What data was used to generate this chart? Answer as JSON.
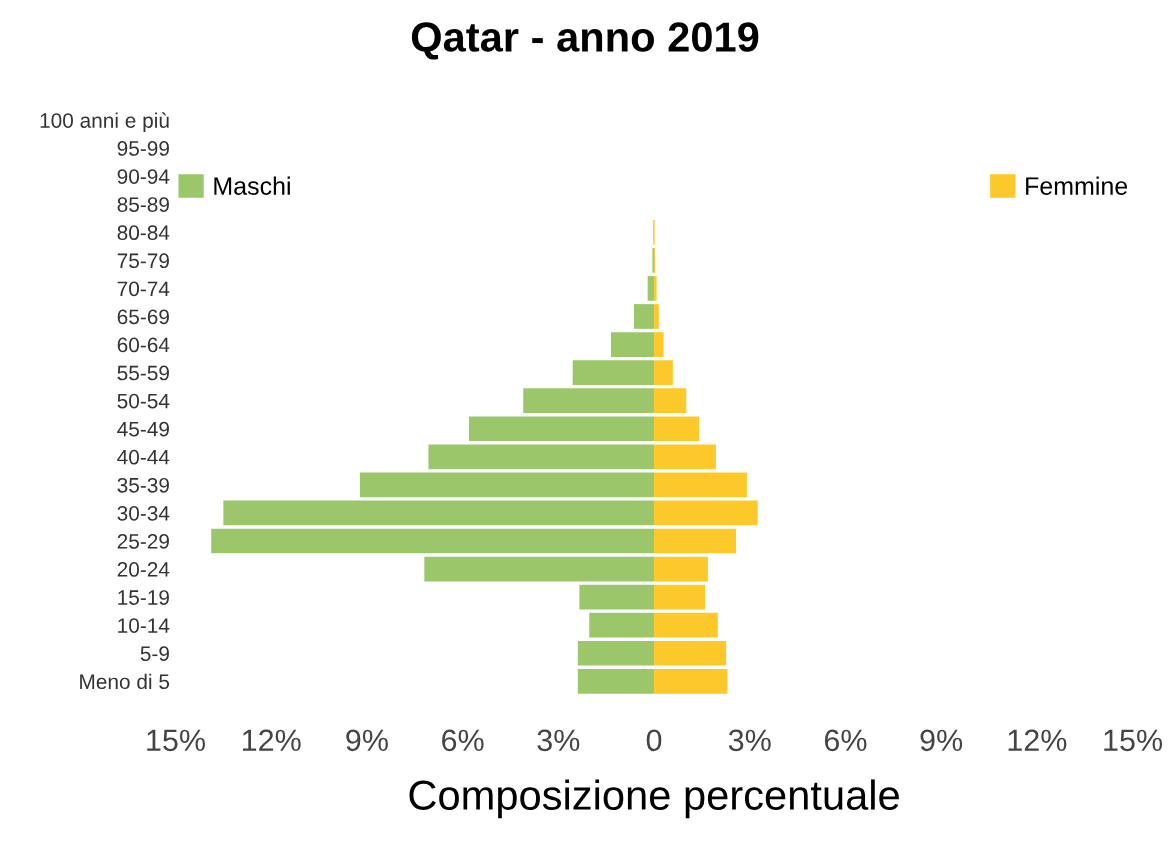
{
  "chart_data": {
    "type": "bar",
    "orientation": "horizontal",
    "title": "Qatar - anno 2019",
    "xlabel": "Composizione percentuale",
    "categories": [
      "100 anni e più",
      "95-99",
      "90-94",
      "85-89",
      "80-84",
      "75-79",
      "70-74",
      "65-69",
      "60-64",
      "55-59",
      "50-54",
      "45-49",
      "40-44",
      "35-39",
      "30-34",
      "25-29",
      "20-24",
      "15-19",
      "10-14",
      "5-9",
      "Meno di 5"
    ],
    "series": [
      {
        "name": "Maschi",
        "color": "#9bc66a",
        "values": [
          null,
          null,
          null,
          null,
          -0.02,
          -0.05,
          -0.2,
          -0.63,
          -1.35,
          -2.55,
          -4.1,
          -5.8,
          -7.07,
          -9.22,
          -13.5,
          -13.88,
          -7.2,
          -2.34,
          -2.03,
          -2.39,
          -2.39
        ]
      },
      {
        "name": "Femmine",
        "color": "#fdc82a",
        "values": [
          null,
          null,
          null,
          null,
          0.02,
          0.03,
          0.08,
          0.15,
          0.3,
          0.59,
          1.01,
          1.41,
          1.94,
          2.91,
          3.25,
          2.57,
          1.69,
          1.6,
          2.0,
          2.26,
          2.3
        ]
      }
    ],
    "xlim": [
      -15,
      15
    ],
    "xticks": [
      {
        "value": -15,
        "label": "15%"
      },
      {
        "value": -12,
        "label": "12%"
      },
      {
        "value": -9,
        "label": "9%"
      },
      {
        "value": -6,
        "label": "6%"
      },
      {
        "value": -3,
        "label": "3%"
      },
      0,
      {
        "value": 3,
        "label": "3%"
      },
      {
        "value": 6,
        "label": "6%"
      },
      {
        "value": 9,
        "label": "9%"
      },
      {
        "value": 12,
        "label": "12%"
      },
      {
        "value": 15,
        "label": "15%"
      }
    ],
    "legend": "top",
    "grid": false,
    "stacked": true
  }
}
